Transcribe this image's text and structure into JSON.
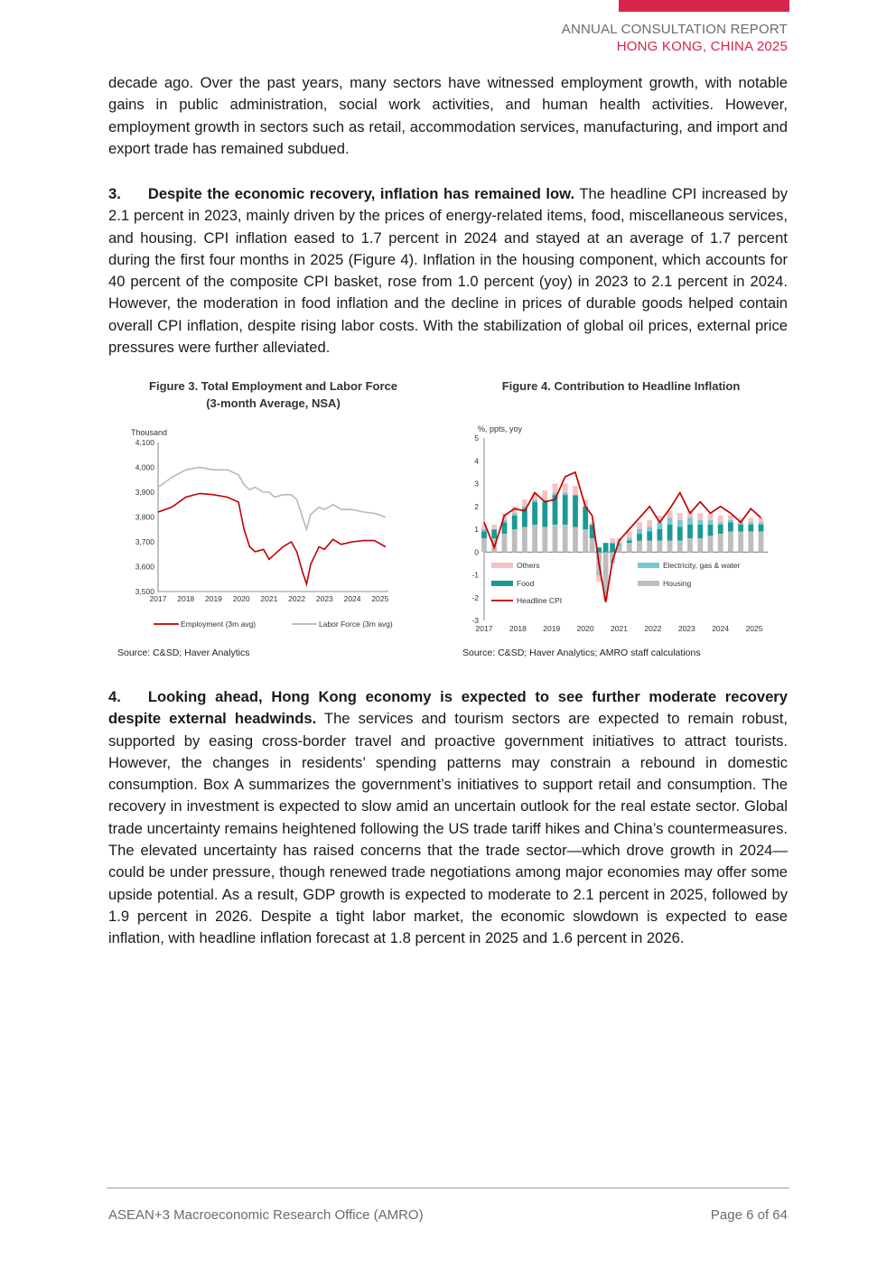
{
  "header": {
    "line1": "ANNUAL CONSULTATION REPORT",
    "line2": "HONG KONG, CHINA 2025",
    "accent_color": "#d6254a"
  },
  "paragraphs": {
    "p_intro": "decade ago. Over the past years, many sectors have witnessed employment growth, with notable gains in public administration, social work activities, and human health activities. However, employment growth in sectors such as retail, accommodation services, manufacturing, and import and export trade has remained subdued.",
    "p3_number": "3.",
    "p3_bold": "Despite the economic recovery, inflation has remained low.",
    "p3_text": " The headline CPI increased by 2.1 percent in 2023, mainly driven by the prices of energy-related items, food, miscellaneous services, and housing. CPI inflation eased to 1.7 percent in 2024 and stayed at an average of 1.7 percent during the first four months in 2025 (Figure 4). Inflation in the housing component, which accounts for 40 percent of the composite CPI basket, rose from 1.0 percent (yoy) in 2023 to 2.1 percent in 2024. However, the moderation in food inflation and the decline in prices of durable goods helped contain overall CPI inflation, despite rising labor costs. With the stabilization of global oil prices, external price pressures were further alleviated.",
    "p4_number": "4.",
    "p4_bold": "Looking ahead, Hong Kong economy is expected to see further moderate recovery despite external headwinds.",
    "p4_text": " The services and tourism sectors are expected to remain robust, supported by easing cross-border travel and proactive government initiatives to attract tourists. However, the changes in residents’ spending patterns may constrain a rebound in domestic consumption. Box A summarizes the government’s initiatives to support retail and consumption. The recovery in investment is expected to slow amid an uncertain outlook for the real estate sector. Global trade uncertainty remains heightened following the US trade tariff hikes and China’s countermeasures. The elevated uncertainty has raised concerns that the trade sector—which drove growth in 2024—could be under pressure, though renewed trade negotiations among major economies may offer some upside potential. As a result, GDP growth is expected to moderate to 2.1 percent in 2025, followed by 1.9 percent in 2026. Despite a tight labor market, the economic slowdown is expected to ease inflation, with headline inflation forecast at 1.8 percent in 2025 and 1.6 percent in 2026."
  },
  "figure3": {
    "title_line1": "Figure 3.   Total Employment and Labor Force",
    "title_line2": "(3-month Average, NSA)",
    "source": "Source: C&SD; Haver Analytics"
  },
  "figure4": {
    "title_line1": "Figure 4.   Contribution to Headline Inflation",
    "source": "Source: C&SD; Haver Analytics; AMRO staff calculations"
  },
  "chart_data": [
    {
      "type": "line",
      "ylabel": "Thousand",
      "ylim": [
        3500,
        4100
      ],
      "yticks": [
        "3,500",
        "3,600",
        "3,700",
        "3,800",
        "3,900",
        "4,000",
        "4,100"
      ],
      "xticks": [
        "2017",
        "2018",
        "2019",
        "2020",
        "2021",
        "2022",
        "2023",
        "2024",
        "2025"
      ],
      "legend_position": "bottom",
      "x": [
        2017.0,
        2017.5,
        2018.0,
        2018.5,
        2019.0,
        2019.5,
        2019.9,
        2020.1,
        2020.3,
        2020.5,
        2020.8,
        2021.0,
        2021.2,
        2021.5,
        2021.8,
        2022.0,
        2022.2,
        2022.35,
        2022.5,
        2022.8,
        2023.0,
        2023.3,
        2023.6,
        2024.0,
        2024.4,
        2024.8,
        2025.2
      ],
      "series": [
        {
          "name": "Employment (3m avg)",
          "color": "#c00000",
          "values": [
            3820,
            3840,
            3880,
            3895,
            3890,
            3880,
            3860,
            3750,
            3680,
            3660,
            3670,
            3630,
            3650,
            3680,
            3700,
            3660,
            3580,
            3530,
            3610,
            3680,
            3670,
            3710,
            3690,
            3700,
            3705,
            3705,
            3680
          ]
        },
        {
          "name": "Labor Force (3m avg)",
          "color": "#b8b8b8",
          "values": [
            3920,
            3960,
            3990,
            4000,
            3990,
            3990,
            3970,
            3930,
            3910,
            3920,
            3900,
            3900,
            3880,
            3890,
            3890,
            3870,
            3800,
            3750,
            3810,
            3840,
            3830,
            3850,
            3830,
            3830,
            3820,
            3815,
            3800
          ]
        }
      ]
    },
    {
      "type": "bar",
      "ylabel": "%, ppts, yoy",
      "ylim": [
        -3,
        5
      ],
      "yticks": [
        "-3",
        "-2",
        "-1",
        "0",
        "1",
        "2",
        "3",
        "4",
        "5"
      ],
      "xticks": [
        "2017",
        "2018",
        "2019",
        "2020",
        "2021",
        "2022",
        "2023",
        "2024",
        "2025"
      ],
      "legend_position": "bottom-inside",
      "x": [
        2017.0,
        2017.3,
        2017.6,
        2017.9,
        2018.2,
        2018.5,
        2018.8,
        2019.1,
        2019.4,
        2019.7,
        2020.0,
        2020.2,
        2020.4,
        2020.6,
        2020.8,
        2021.0,
        2021.3,
        2021.6,
        2021.9,
        2022.2,
        2022.5,
        2022.8,
        2023.1,
        2023.4,
        2023.7,
        2024.0,
        2024.3,
        2024.6,
        2024.9,
        2025.2
      ],
      "series": [
        {
          "name": "Others",
          "color": "#f4c2c2",
          "values": [
            0.2,
            0.2,
            0.3,
            0.3,
            0.3,
            0.3,
            0.4,
            0.4,
            0.4,
            0.4,
            0.3,
            0.1,
            -0.3,
            -0.3,
            0.2,
            0.2,
            0.3,
            0.3,
            0.3,
            0.3,
            0.3,
            0.3,
            0.3,
            0.3,
            0.3,
            0.3,
            0.2,
            0.2,
            0.2,
            0.2
          ]
        },
        {
          "name": "Electricity, gas & water",
          "color": "#74c9d4",
          "values": [
            0.1,
            0.0,
            0.1,
            0.1,
            0.1,
            0.1,
            0.1,
            0.1,
            0.1,
            0.0,
            0.0,
            0.0,
            -0.1,
            -0.1,
            0.0,
            0.1,
            0.1,
            0.2,
            0.2,
            0.3,
            0.3,
            0.3,
            0.3,
            0.2,
            0.2,
            0.1,
            0.1,
            0.1,
            0.1,
            0.1
          ]
        },
        {
          "name": "Food",
          "color": "#1a9a96",
          "values": [
            0.3,
            0.4,
            0.5,
            0.6,
            0.8,
            1.0,
            1.1,
            1.3,
            1.3,
            1.4,
            1.0,
            0.6,
            0.2,
            0.4,
            0.4,
            0.0,
            0.1,
            0.3,
            0.4,
            0.5,
            0.7,
            0.6,
            0.6,
            0.6,
            0.5,
            0.4,
            0.4,
            0.3,
            0.3,
            0.3
          ]
        },
        {
          "name": "Housing",
          "color": "#bdbdbd",
          "values": [
            0.6,
            0.6,
            0.8,
            1.0,
            1.1,
            1.2,
            1.1,
            1.2,
            1.2,
            1.1,
            1.0,
            0.6,
            -0.9,
            -1.7,
            -0.5,
            0.3,
            0.4,
            0.5,
            0.5,
            0.5,
            0.5,
            0.5,
            0.6,
            0.6,
            0.7,
            0.8,
            0.9,
            0.9,
            0.9,
            0.9
          ]
        },
        {
          "name": "Headline CPI",
          "color": "#c00000",
          "values": [
            1.3,
            0.2,
            1.6,
            1.9,
            1.8,
            2.6,
            2.2,
            2.3,
            3.3,
            3.5,
            2.0,
            1.6,
            -0.5,
            -2.2,
            -0.4,
            0.5,
            1.0,
            1.5,
            2.0,
            1.3,
            1.9,
            2.6,
            1.7,
            2.2,
            1.7,
            2.0,
            1.7,
            1.3,
            1.9,
            1.5
          ]
        }
      ]
    }
  ],
  "footer": {
    "left": "ASEAN+3 Macroeconomic Research Office (AMRO)",
    "right": "Page 6 of 64"
  }
}
